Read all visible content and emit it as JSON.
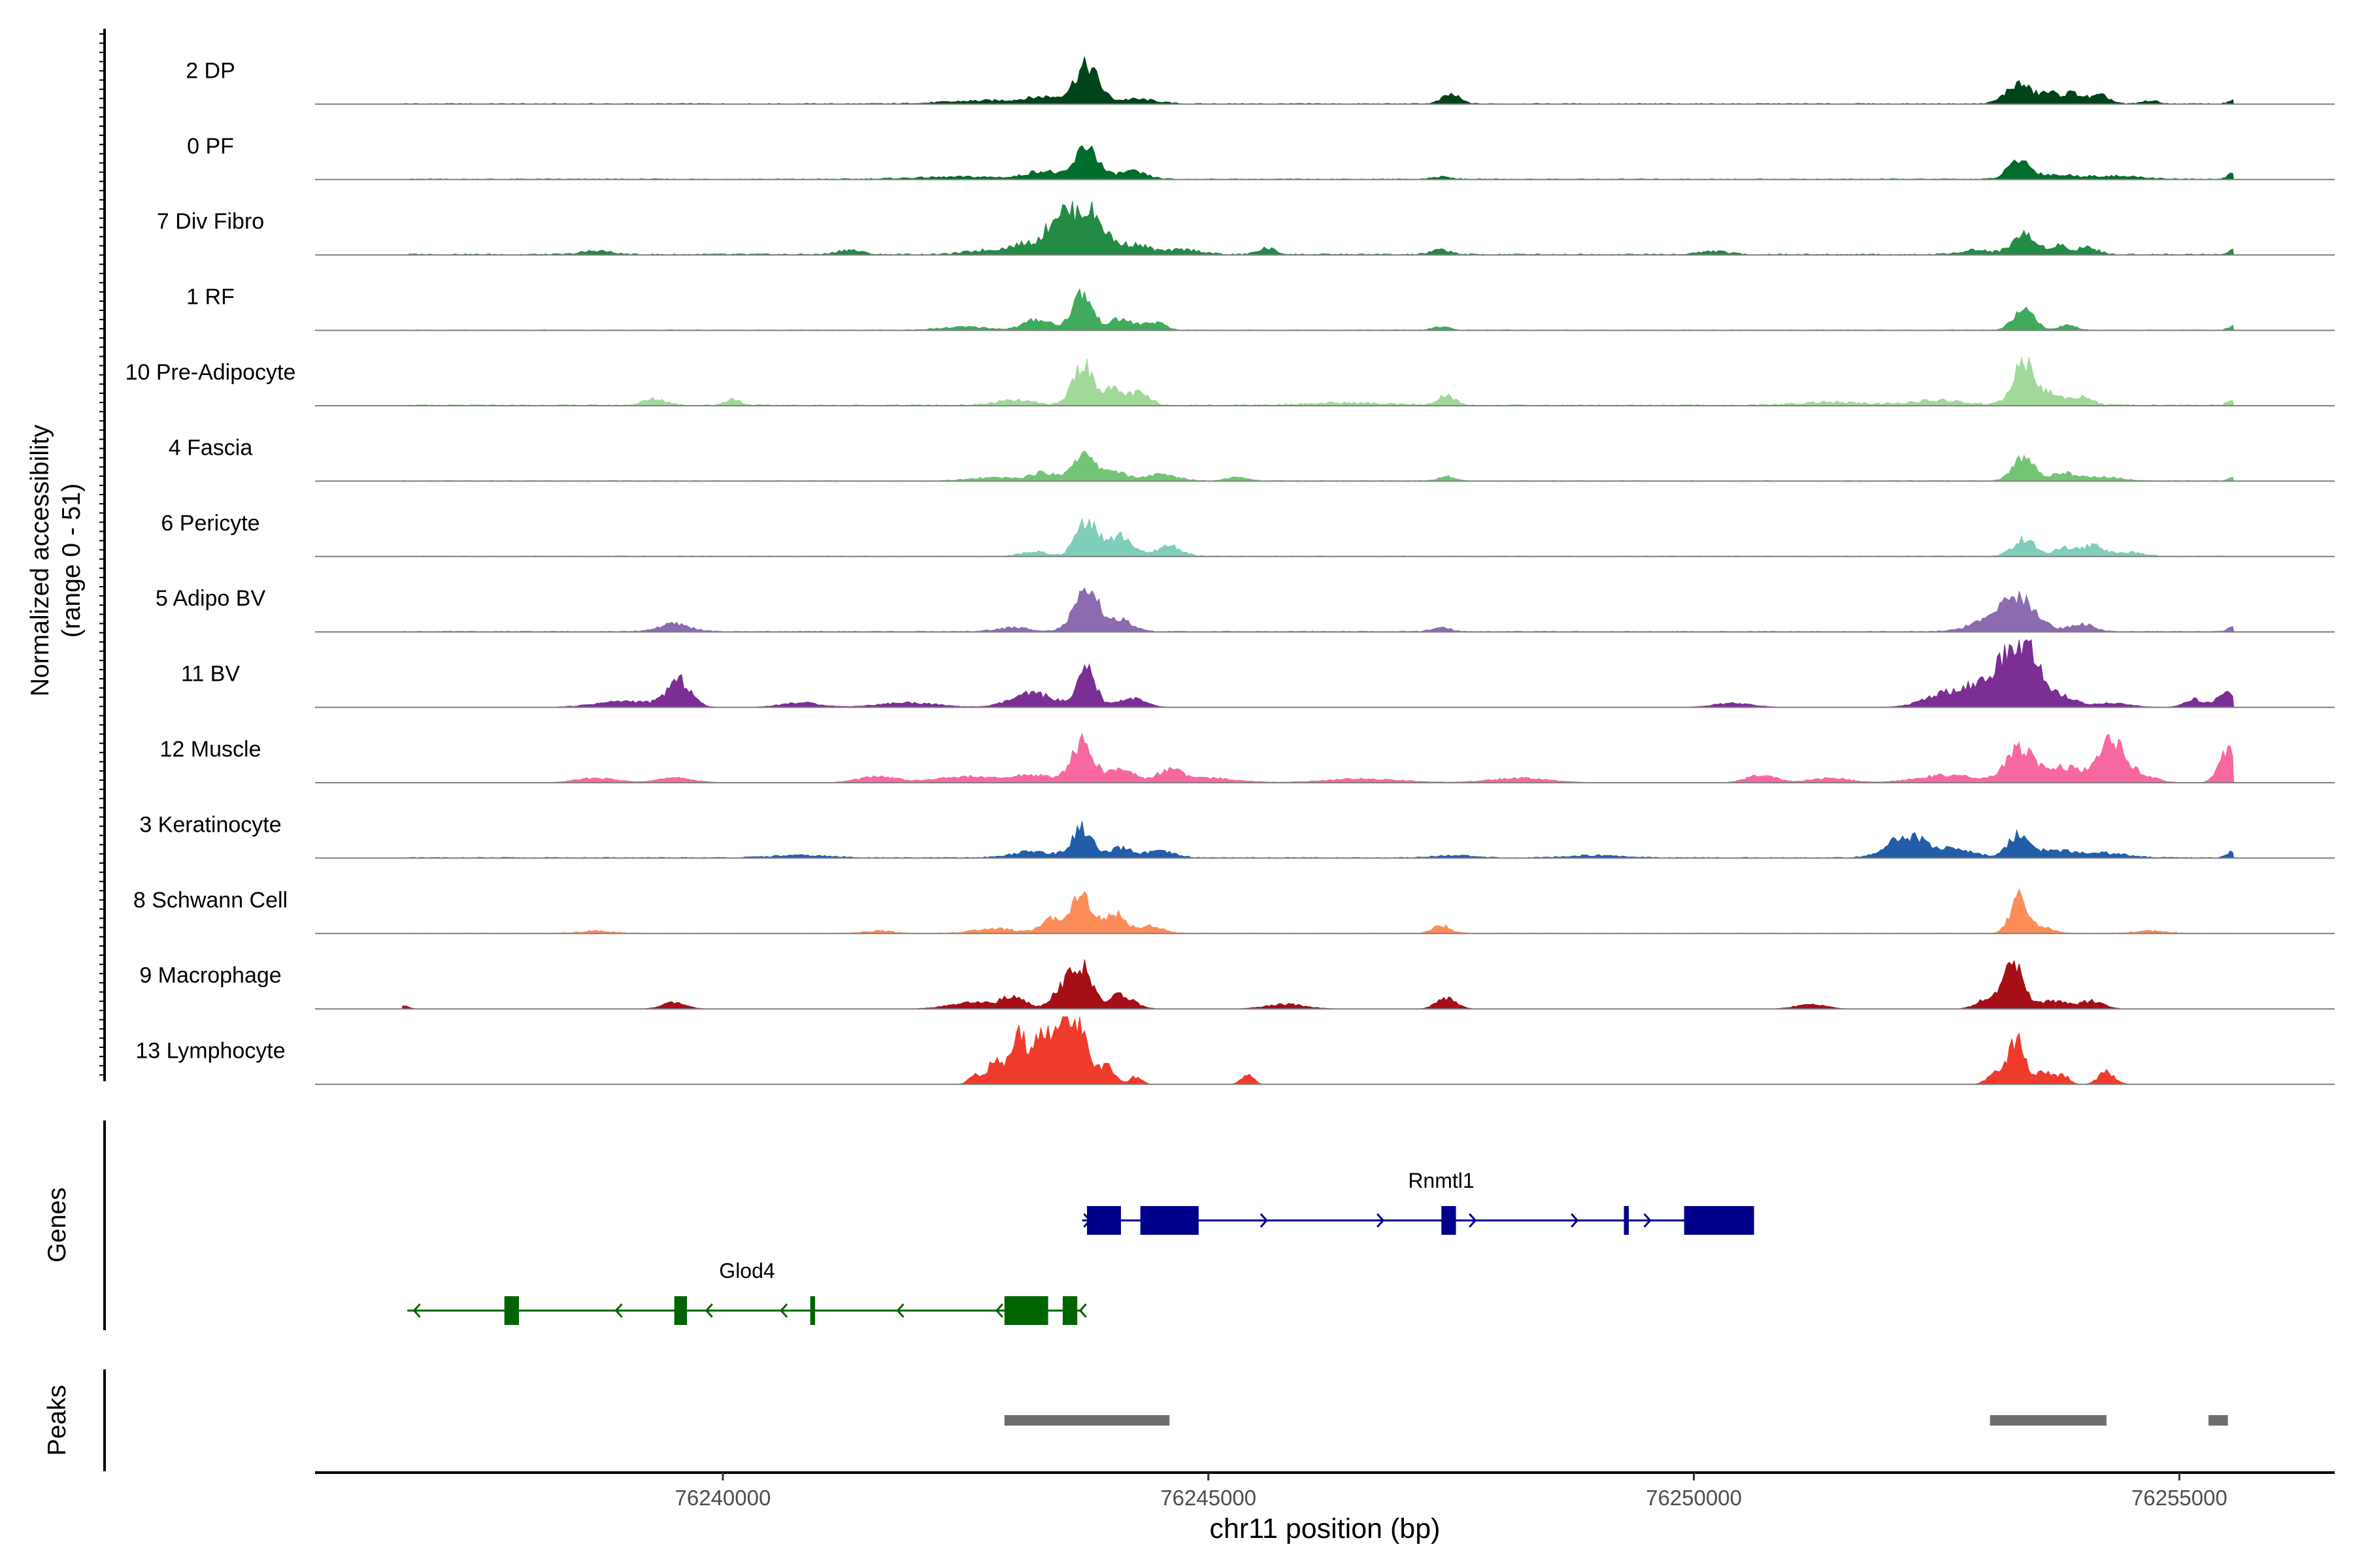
{
  "chart_data": {
    "type": "area",
    "title": "",
    "chromosome": "chr11",
    "xlabel": "chr11 position (bp)",
    "xlim": [
      76235800,
      76256600
    ],
    "xticks": [
      76240000,
      76245000,
      76250000,
      76255000
    ],
    "xtick_labels": [
      "76240000",
      "76245000",
      "76250000",
      "76255000"
    ],
    "coverage_ylabel": "Normalized accessibility",
    "coverage_ylabel_range": "(range 0 - 51)",
    "ylim": [
      0,
      51
    ],
    "genes_label": "Genes",
    "peaks_label": "Peaks",
    "tracks": [
      {
        "name": "2 DP",
        "color": "#00441B",
        "peaks": [
          [
            76243750,
            120,
            48
          ],
          [
            76243350,
            220,
            8
          ],
          [
            76242700,
            400,
            4
          ],
          [
            76244250,
            200,
            6
          ],
          [
            76247500,
            90,
            12
          ],
          [
            76253350,
            130,
            26
          ],
          [
            76253650,
            80,
            12
          ],
          [
            76253900,
            120,
            14
          ],
          [
            76254200,
            90,
            10
          ],
          [
            76254700,
            80,
            4
          ],
          [
            76255550,
            50,
            4
          ]
        ],
        "baseline": 1.0
      },
      {
        "name": "0 PF",
        "color": "#006D2C",
        "peaks": [
          [
            76243750,
            110,
            44
          ],
          [
            76243300,
            160,
            10
          ],
          [
            76244200,
            150,
            10
          ],
          [
            76242500,
            500,
            3
          ],
          [
            76247400,
            100,
            3
          ],
          [
            76253350,
            110,
            24
          ],
          [
            76253700,
            200,
            5
          ],
          [
            76254300,
            300,
            4
          ],
          [
            76255550,
            50,
            7
          ]
        ],
        "baseline": 1.0
      },
      {
        "name": "7 Div Fibro",
        "color": "#238B45",
        "peaks": [
          [
            76243750,
            170,
            58
          ],
          [
            76243450,
            110,
            40
          ],
          [
            76243150,
            180,
            14
          ],
          [
            76244250,
            150,
            12
          ],
          [
            76244750,
            180,
            6
          ],
          [
            76245600,
            90,
            8
          ],
          [
            76247400,
            100,
            6
          ],
          [
            76238700,
            140,
            5
          ],
          [
            76241300,
            120,
            6
          ],
          [
            76242700,
            200,
            5
          ],
          [
            76250200,
            150,
            4
          ],
          [
            76253400,
            120,
            26
          ],
          [
            76253750,
            90,
            12
          ],
          [
            76254050,
            100,
            10
          ],
          [
            76255550,
            50,
            6
          ],
          [
            76252900,
            150,
            6
          ]
        ],
        "baseline": 1.5
      },
      {
        "name": "1 RF",
        "color": "#41AB5D",
        "peaks": [
          [
            76243700,
            100,
            48
          ],
          [
            76243250,
            140,
            14
          ],
          [
            76244100,
            130,
            14
          ],
          [
            76244450,
            100,
            10
          ],
          [
            76242500,
            250,
            4
          ],
          [
            76247400,
            90,
            4
          ],
          [
            76253400,
            100,
            32
          ],
          [
            76253850,
            90,
            6
          ],
          [
            76255550,
            50,
            6
          ]
        ],
        "baseline": 0.7
      },
      {
        "name": "10 Pre-Adipocyte",
        "color": "#A1D99B",
        "peaks": [
          [
            76243700,
            100,
            52
          ],
          [
            76244000,
            130,
            20
          ],
          [
            76244300,
            100,
            14
          ],
          [
            76243000,
            200,
            6
          ],
          [
            76239300,
            120,
            8
          ],
          [
            76240100,
            80,
            8
          ],
          [
            76247450,
            90,
            12
          ],
          [
            76246400,
            400,
            3
          ],
          [
            76251400,
            300,
            4
          ],
          [
            76253400,
            110,
            56
          ],
          [
            76253700,
            100,
            14
          ],
          [
            76254000,
            100,
            12
          ],
          [
            76252500,
            300,
            6
          ],
          [
            76255550,
            50,
            8
          ]
        ],
        "baseline": 1.5
      },
      {
        "name": "4 Fascia",
        "color": "#74C476",
        "peaks": [
          [
            76243700,
            110,
            34
          ],
          [
            76243300,
            130,
            10
          ],
          [
            76244000,
            120,
            14
          ],
          [
            76244500,
            180,
            8
          ],
          [
            76245300,
            100,
            6
          ],
          [
            76242800,
            250,
            4
          ],
          [
            76247450,
            80,
            6
          ],
          [
            76253400,
            110,
            30
          ],
          [
            76253800,
            120,
            10
          ],
          [
            76254200,
            200,
            5
          ],
          [
            76255550,
            50,
            4
          ]
        ],
        "baseline": 0.8
      },
      {
        "name": "6 Pericyte",
        "color": "#7FCDBB",
        "peaks": [
          [
            76243750,
            110,
            48
          ],
          [
            76244100,
            120,
            26
          ],
          [
            76244600,
            120,
            14
          ],
          [
            76243200,
            120,
            6
          ],
          [
            76253400,
            110,
            22
          ],
          [
            76253800,
            100,
            10
          ],
          [
            76254100,
            120,
            14
          ],
          [
            76254500,
            150,
            5
          ]
        ],
        "baseline": 0.9
      },
      {
        "name": "5 Adipo BV",
        "color": "#8C6BB1",
        "peaks": [
          [
            76243750,
            130,
            50
          ],
          [
            76244100,
            120,
            14
          ],
          [
            76239500,
            160,
            10
          ],
          [
            76243000,
            180,
            5
          ],
          [
            76247400,
            90,
            6
          ],
          [
            76253350,
            180,
            44
          ],
          [
            76253000,
            200,
            10
          ],
          [
            76254000,
            120,
            10
          ],
          [
            76255550,
            50,
            6
          ]
        ],
        "baseline": 0.9
      },
      {
        "name": "11 BV",
        "color": "#7A2E96",
        "peaks": [
          [
            76243750,
            90,
            48
          ],
          [
            76243200,
            220,
            18
          ],
          [
            76244200,
            140,
            12
          ],
          [
            76239550,
            120,
            34
          ],
          [
            76239000,
            300,
            8
          ],
          [
            76240800,
            200,
            6
          ],
          [
            76241900,
            300,
            6
          ],
          [
            76253250,
            150,
            58
          ],
          [
            76253450,
            110,
            54
          ],
          [
            76252600,
            220,
            18
          ],
          [
            76252950,
            160,
            22
          ],
          [
            76253700,
            180,
            18
          ],
          [
            76254300,
            200,
            5
          ],
          [
            76255500,
            100,
            22
          ],
          [
            76255150,
            100,
            10
          ],
          [
            76250400,
            200,
            5
          ]
        ],
        "baseline": 0
      },
      {
        "name": "12 Muscle",
        "color": "#F768A1",
        "peaks": [
          [
            76243700,
            110,
            52
          ],
          [
            76244100,
            140,
            18
          ],
          [
            76244600,
            120,
            16
          ],
          [
            76242500,
            300,
            8
          ],
          [
            76243200,
            200,
            10
          ],
          [
            76238700,
            200,
            6
          ],
          [
            76239500,
            200,
            6
          ],
          [
            76241600,
            200,
            8
          ],
          [
            76245000,
            300,
            6
          ],
          [
            76246600,
            400,
            5
          ],
          [
            76248200,
            300,
            6
          ],
          [
            76250700,
            150,
            10
          ],
          [
            76253350,
            140,
            42
          ],
          [
            76252600,
            300,
            10
          ],
          [
            76253800,
            200,
            20
          ],
          [
            76254300,
            130,
            52
          ],
          [
            76254600,
            150,
            10
          ],
          [
            76251400,
            200,
            6
          ],
          [
            76255500,
            90,
            40
          ]
        ],
        "baseline": 0
      },
      {
        "name": "3 Keratinocyte",
        "color": "#225EA8",
        "peaks": [
          [
            76243700,
            100,
            38
          ],
          [
            76243200,
            220,
            8
          ],
          [
            76244100,
            120,
            12
          ],
          [
            76244500,
            150,
            8
          ],
          [
            76252200,
            200,
            28
          ],
          [
            76252700,
            200,
            10
          ],
          [
            76253350,
            110,
            30
          ],
          [
            76253700,
            200,
            8
          ],
          [
            76254200,
            250,
            6
          ],
          [
            76255550,
            60,
            8
          ],
          [
            76240800,
            300,
            3
          ],
          [
            76247500,
            200,
            3
          ],
          [
            76249000,
            300,
            3
          ]
        ],
        "baseline": 1.0
      },
      {
        "name": "8 Schwann Cell",
        "color": "#FC8D59",
        "peaks": [
          [
            76243700,
            110,
            50
          ],
          [
            76243400,
            120,
            18
          ],
          [
            76244050,
            100,
            26
          ],
          [
            76244400,
            120,
            10
          ],
          [
            76242800,
            200,
            6
          ],
          [
            76247400,
            90,
            10
          ],
          [
            76253350,
            90,
            46
          ],
          [
            76253600,
            100,
            8
          ],
          [
            76238700,
            150,
            3
          ],
          [
            76241600,
            150,
            3
          ],
          [
            76254700,
            150,
            3
          ]
        ],
        "baseline": 0.6
      },
      {
        "name": "9 Macrophage",
        "color": "#A50F15",
        "peaks": [
          [
            76243700,
            100,
            50
          ],
          [
            76243500,
            110,
            28
          ],
          [
            76243000,
            120,
            14
          ],
          [
            76244100,
            130,
            18
          ],
          [
            76242600,
            250,
            8
          ],
          [
            76247450,
            100,
            14
          ],
          [
            76253300,
            100,
            58
          ],
          [
            76253050,
            120,
            14
          ],
          [
            76253700,
            150,
            10
          ],
          [
            76254100,
            120,
            10
          ],
          [
            76236700,
            60,
            4
          ],
          [
            76239500,
            120,
            8
          ],
          [
            76245800,
            200,
            6
          ],
          [
            76251200,
            150,
            6
          ]
        ],
        "baseline": 0
      },
      {
        "name": "13 Lymphocyte",
        "color": "#EF3B2C",
        "peaks": [
          [
            76243650,
            110,
            80
          ],
          [
            76243300,
            90,
            70
          ],
          [
            76243050,
            90,
            62
          ],
          [
            76243500,
            70,
            48
          ],
          [
            76242800,
            70,
            30
          ],
          [
            76242600,
            60,
            14
          ],
          [
            76243950,
            80,
            22
          ],
          [
            76244250,
            60,
            10
          ],
          [
            76245400,
            60,
            14
          ],
          [
            76253320,
            80,
            60
          ],
          [
            76253100,
            80,
            14
          ],
          [
            76253600,
            80,
            18
          ],
          [
            76253800,
            60,
            12
          ],
          [
            76254250,
            80,
            16
          ]
        ],
        "baseline": 0
      }
    ],
    "genes": [
      {
        "name": "Rnmtl1",
        "strand": "+",
        "color": "#00008B",
        "start": 76243700,
        "end": 76250620,
        "exons": [
          [
            76243750,
            76244100
          ],
          [
            76244300,
            76244900
          ],
          [
            76247400,
            76247550
          ],
          [
            76249280,
            76249330
          ],
          [
            76249900,
            76250620
          ]
        ],
        "arrows": [
          76243780,
          76245600,
          76246800,
          76247750,
          76248800,
          76249550
        ]
      },
      {
        "name": "Glod4",
        "strand": "-",
        "color": "#006400",
        "start": 76236750,
        "end": 76243700,
        "exons": [
          [
            76237750,
            76237900
          ],
          [
            76239500,
            76239630
          ],
          [
            76240900,
            76240950
          ],
          [
            76242900,
            76243350
          ],
          [
            76243500,
            76243650
          ]
        ],
        "arrows": [
          76236820,
          76238900,
          76239830,
          76240600,
          76241800,
          76242820,
          76243680
        ]
      }
    ],
    "peaks_regions": [
      [
        76242900,
        76244600
      ],
      [
        76253050,
        76254250
      ],
      [
        76255300,
        76255500
      ]
    ]
  }
}
